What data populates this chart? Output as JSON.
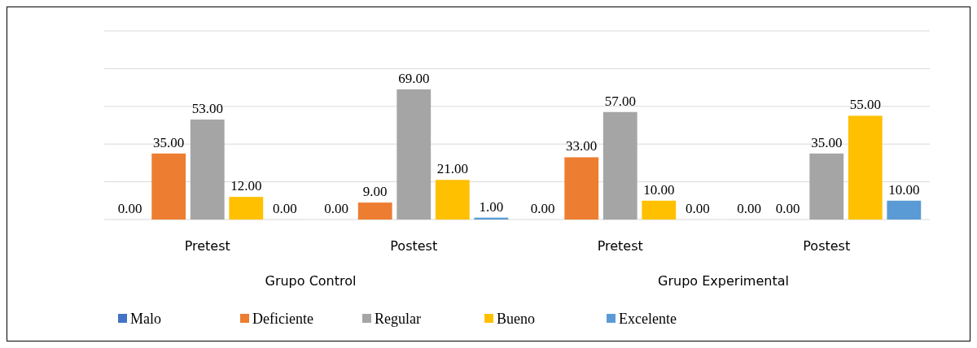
{
  "chart_data": {
    "type": "bar",
    "categories": [
      "Pretest",
      "Postest",
      "Pretest",
      "Postest"
    ],
    "annotations": [
      "Grupo Control",
      "Grupo Experimental"
    ],
    "ylim": [
      0,
      100
    ],
    "yticks": [
      {
        "value": 0,
        "label": null
      },
      {
        "value": 20,
        "label": null
      },
      {
        "value": 40,
        "label": null
      },
      {
        "value": 60,
        "label": null
      },
      {
        "value": 80,
        "label": null
      },
      {
        "value": 100,
        "label": null
      }
    ],
    "tick_labels": "x",
    "grid": "y",
    "legend": "bottom",
    "series": [
      {
        "name": "Malo",
        "color": "#4472c4",
        "values": [
          0,
          0,
          0,
          0
        ],
        "value_labels": [
          "0.00",
          "0.00",
          "0.00",
          "0.00"
        ]
      },
      {
        "name": "Deficiente",
        "color": "#ed7d31",
        "values": [
          35,
          9,
          33,
          0
        ],
        "value_labels": [
          "35.00",
          "9.00",
          "33.00",
          "0.00"
        ]
      },
      {
        "name": "Regular",
        "color": "#a5a5a5",
        "values": [
          53,
          69,
          57,
          35
        ],
        "value_labels": [
          "53.00",
          "69.00",
          "57.00",
          "35.00"
        ]
      },
      {
        "name": "Bueno",
        "color": "#ffc000",
        "values": [
          12,
          21,
          10,
          55
        ],
        "value_labels": [
          "12.00",
          "21.00",
          "10.00",
          "55.00"
        ]
      },
      {
        "name": "Excelente",
        "color": "#5b9bd5",
        "values": [
          0,
          1,
          0,
          10
        ],
        "value_labels": [
          "0.00",
          "1.00",
          "0.00",
          "10.00"
        ]
      }
    ]
  }
}
